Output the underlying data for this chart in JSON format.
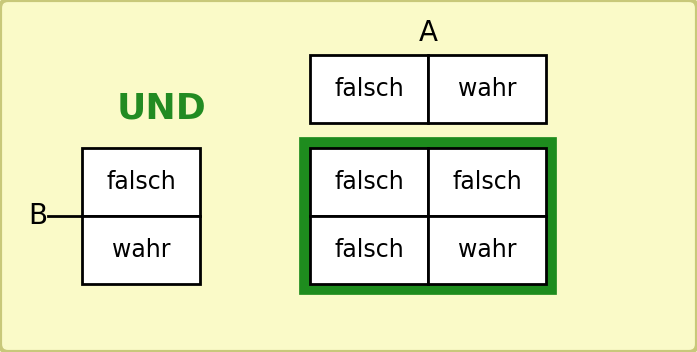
{
  "background_color": "#FAFAC8",
  "outer_border_color": "#C8C87A",
  "title_A": "A",
  "title_B": "B",
  "label_UND": "UND",
  "UND_color": "#228B22",
  "cells": {
    "A_falsch": "falsch",
    "A_wahr": "wahr",
    "B_falsch": "falsch",
    "B_wahr": "wahr",
    "TL": "falsch",
    "TR": "falsch",
    "BL": "falsch",
    "BR": "wahr"
  },
  "cell_bg": "#FFFFFF",
  "cell_border": "#000000",
  "green_border": "#1E8C1E",
  "font_size_cells": 17,
  "font_size_UND": 26,
  "font_size_AB": 20,
  "fig_width": 6.97,
  "fig_height": 3.52,
  "dpi": 100
}
